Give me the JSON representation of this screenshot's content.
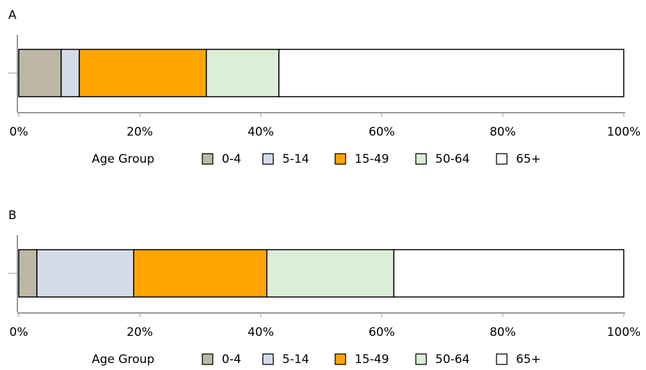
{
  "chart_data": [
    {
      "type": "bar",
      "orientation": "horizontal",
      "stacked": true,
      "title": "A",
      "legend_title": "Age Group",
      "categories": [
        null
      ],
      "series": [
        {
          "name": "0-4",
          "color": "#bfb8a6",
          "values": [
            7
          ]
        },
        {
          "name": "5-14",
          "color": "#d4dce8",
          "values": [
            3
          ]
        },
        {
          "name": "15-49",
          "color": "#ffa500",
          "values": [
            21
          ]
        },
        {
          "name": "50-64",
          "color": "#dbeed6",
          "values": [
            12
          ]
        },
        {
          "name": "65+",
          "color": "#ffffff",
          "values": [
            57
          ]
        }
      ],
      "xlim": [
        0,
        100
      ],
      "xticks": [
        {
          "value": 0,
          "label": "0%"
        },
        {
          "value": 20,
          "label": "20%"
        },
        {
          "value": 40,
          "label": "40%"
        },
        {
          "value": 60,
          "label": "60%"
        },
        {
          "value": 80,
          "label": "80%"
        },
        {
          "value": 100,
          "label": "100%"
        }
      ]
    },
    {
      "type": "bar",
      "orientation": "horizontal",
      "stacked": true,
      "title": "B",
      "legend_title": "Age Group",
      "categories": [
        null
      ],
      "series": [
        {
          "name": "0-4",
          "color": "#bfb8a6",
          "values": [
            3
          ]
        },
        {
          "name": "5-14",
          "color": "#d4dce8",
          "values": [
            16
          ]
        },
        {
          "name": "15-49",
          "color": "#ffa500",
          "values": [
            22
          ]
        },
        {
          "name": "50-64",
          "color": "#dbeed6",
          "values": [
            21
          ]
        },
        {
          "name": "65+",
          "color": "#ffffff",
          "values": [
            38
          ]
        }
      ],
      "xlim": [
        0,
        100
      ],
      "xticks": [
        {
          "value": 0,
          "label": "0%"
        },
        {
          "value": 20,
          "label": "20%"
        },
        {
          "value": 40,
          "label": "40%"
        },
        {
          "value": 60,
          "label": "60%"
        },
        {
          "value": 80,
          "label": "80%"
        },
        {
          "value": 100,
          "label": "100%"
        }
      ]
    }
  ]
}
